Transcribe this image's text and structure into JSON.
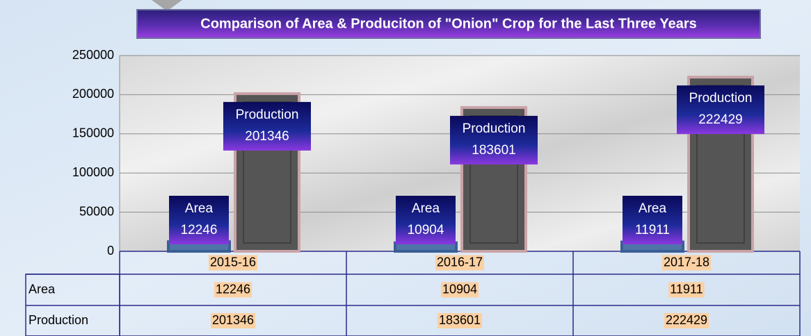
{
  "chart_data": {
    "type": "bar",
    "title": "Comparison of Area & Produciton of  \"Onion\" Crop  for the Last Three Years",
    "categories": [
      "2015-16",
      "2016-17",
      "2017-18"
    ],
    "series": [
      {
        "name": "Area",
        "color": "#4f74a8",
        "values": [
          12246,
          10904,
          11911
        ]
      },
      {
        "name": "Production",
        "color": "#555555",
        "values": [
          201346,
          183601,
          222429
        ]
      }
    ],
    "ylim": [
      0,
      250000
    ],
    "yticks": [
      0,
      50000,
      100000,
      150000,
      200000,
      250000
    ],
    "grid": true
  }
}
